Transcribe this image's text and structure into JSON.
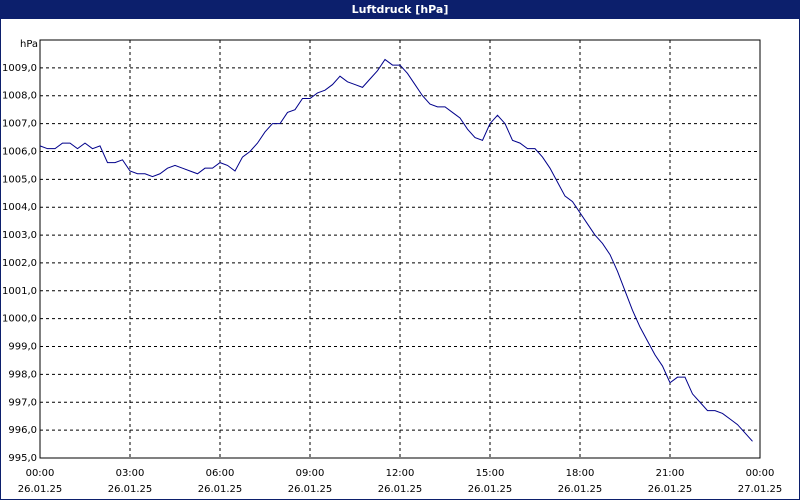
{
  "chart_data": {
    "type": "line",
    "title": "Luftdruck [hPa]",
    "y_label": "hPa",
    "x": [
      0,
      0.25,
      0.5,
      0.75,
      1,
      1.25,
      1.5,
      1.75,
      2,
      2.25,
      2.5,
      2.75,
      3,
      3.25,
      3.5,
      3.75,
      4,
      4.25,
      4.5,
      4.75,
      5,
      5.25,
      5.5,
      5.75,
      6,
      6.25,
      6.5,
      6.75,
      7,
      7.25,
      7.5,
      7.75,
      8,
      8.25,
      8.5,
      8.75,
      9,
      9.25,
      9.5,
      9.75,
      10,
      10.25,
      10.5,
      10.75,
      11,
      11.25,
      11.5,
      11.75,
      12,
      12.25,
      12.5,
      12.75,
      13,
      13.25,
      13.5,
      13.75,
      14,
      14.25,
      14.5,
      14.75,
      15,
      15.25,
      15.5,
      15.75,
      16,
      16.25,
      16.5,
      16.75,
      17,
      17.25,
      17.5,
      17.75,
      18,
      18.25,
      18.5,
      18.75,
      19,
      19.25,
      19.5,
      19.75,
      20,
      20.25,
      20.5,
      20.75,
      21,
      21.25,
      21.5,
      21.75,
      22,
      22.25,
      22.5,
      22.75,
      23,
      23.25,
      23.5,
      23.75
    ],
    "series": [
      {
        "name": "Luftdruck",
        "color": "#00008b",
        "values": [
          1006.2,
          1006.1,
          1006.1,
          1006.3,
          1006.3,
          1006.1,
          1006.3,
          1006.1,
          1006.2,
          1005.6,
          1005.6,
          1005.7,
          1005.3,
          1005.2,
          1005.2,
          1005.1,
          1005.2,
          1005.4,
          1005.5,
          1005.4,
          1005.3,
          1005.2,
          1005.4,
          1005.4,
          1005.6,
          1005.5,
          1005.3,
          1005.8,
          1006.0,
          1006.3,
          1006.7,
          1007.0,
          1007.0,
          1007.4,
          1007.5,
          1007.9,
          1007.9,
          1008.1,
          1008.2,
          1008.4,
          1008.7,
          1008.5,
          1008.4,
          1008.3,
          1008.6,
          1008.9,
          1009.3,
          1009.1,
          1009.1,
          1008.8,
          1008.4,
          1008.0,
          1007.7,
          1007.6,
          1007.6,
          1007.4,
          1007.2,
          1006.8,
          1006.5,
          1006.4,
          1007.0,
          1007.3,
          1007.0,
          1006.4,
          1006.3,
          1006.1,
          1006.1,
          1005.8,
          1005.4,
          1004.9,
          1004.4,
          1004.2,
          1003.8,
          1003.4,
          1003.0,
          1002.7,
          1002.3,
          1001.7,
          1001.0,
          1000.3,
          999.7,
          999.2,
          998.7,
          998.3,
          997.7,
          997.9,
          997.9,
          997.3,
          997.0,
          996.7,
          996.7,
          996.6,
          996.4,
          996.2,
          995.9,
          995.6
        ]
      }
    ],
    "xlim": [
      0,
      24
    ],
    "xticks": [
      {
        "value": 0,
        "label": "00:00",
        "date": "26.01.25"
      },
      {
        "value": 3,
        "label": "03:00",
        "date": "26.01.25"
      },
      {
        "value": 6,
        "label": "06:00",
        "date": "26.01.25"
      },
      {
        "value": 9,
        "label": "09:00",
        "date": "26.01.25"
      },
      {
        "value": 12,
        "label": "12:00",
        "date": "26.01.25"
      },
      {
        "value": 15,
        "label": "15:00",
        "date": "26.01.25"
      },
      {
        "value": 18,
        "label": "18:00",
        "date": "26.01.25"
      },
      {
        "value": 21,
        "label": "21:00",
        "date": "26.01.25"
      },
      {
        "value": 24,
        "label": "00:00",
        "date": "27.01.25"
      }
    ],
    "ylim": [
      995,
      1010
    ],
    "yticks": [
      {
        "value": 995,
        "label": "995,0"
      },
      {
        "value": 996,
        "label": "996,0"
      },
      {
        "value": 997,
        "label": "997,0"
      },
      {
        "value": 998,
        "label": "998,0"
      },
      {
        "value": 999,
        "label": "999,0"
      },
      {
        "value": 1000,
        "label": "1000,0"
      },
      {
        "value": 1001,
        "label": "1001,0"
      },
      {
        "value": 1002,
        "label": "1002,0"
      },
      {
        "value": 1003,
        "label": "1003,0"
      },
      {
        "value": 1004,
        "label": "1004,0"
      },
      {
        "value": 1005,
        "label": "1005,0"
      },
      {
        "value": 1006,
        "label": "1006,0"
      },
      {
        "value": 1007,
        "label": "1007,0"
      },
      {
        "value": 1008,
        "label": "1008,0"
      },
      {
        "value": 1009,
        "label": "1009,0"
      }
    ],
    "grid": true
  }
}
